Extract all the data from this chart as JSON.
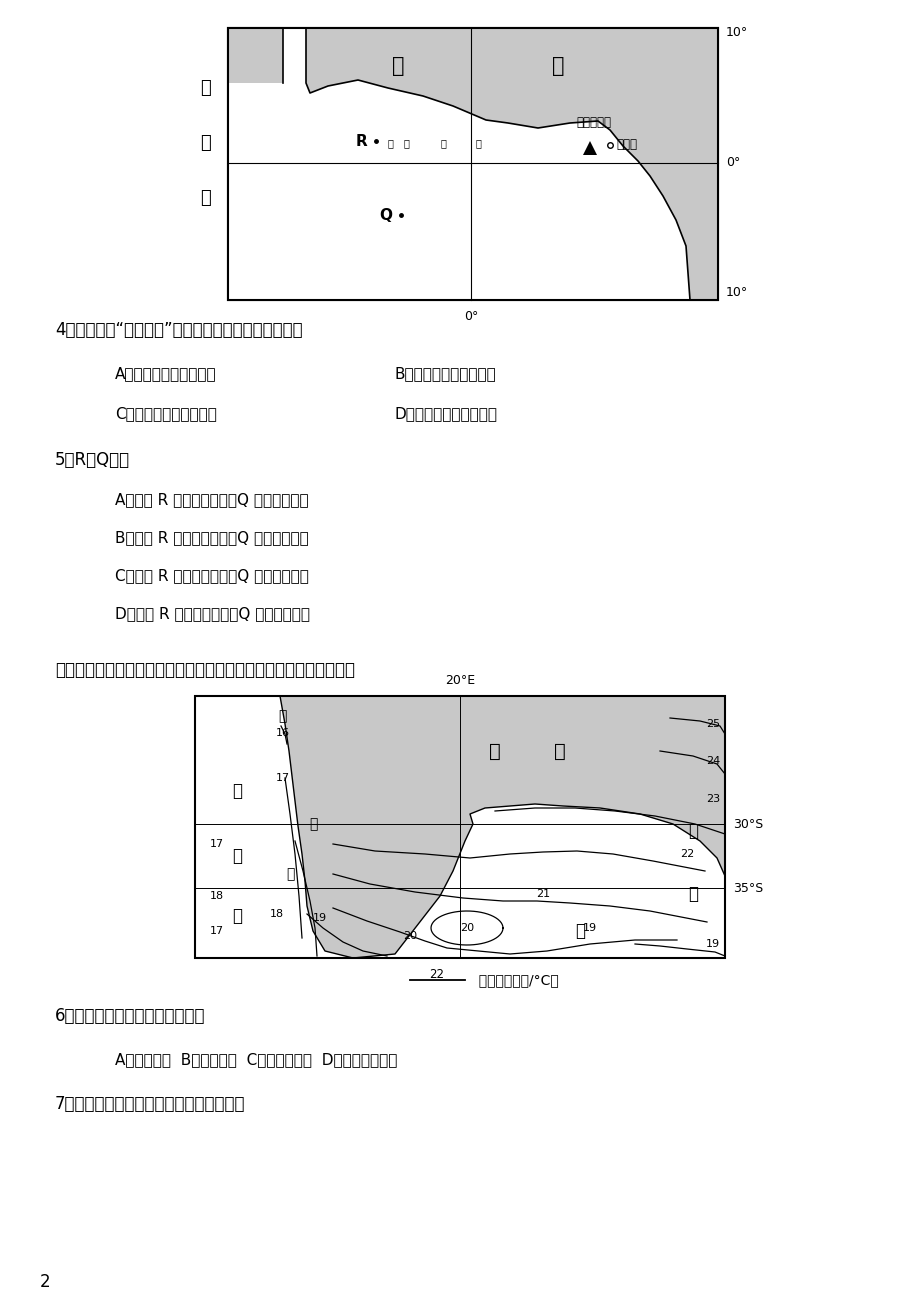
{
  "bg_color": "#ffffff",
  "page_number": "2",
  "intro_text": "下图示意非洲南部周边海域冬季表层水温分布。据此完成下面小题。",
  "question4": "4．布埃亚有“非洲雨极”之称，与其成因没有关联的是",
  "q4a": "A．山地迎风坡多地形雨",
  "q4b": "B．受西非赤道低压影响",
  "q4c": "C．西南季风与海岸垂直",
  "q4d": "D．北赤道暖流增温增湿",
  "question5": "5．R、Q两地",
  "q5a": "A．一月 R 地盛行西南风，Q 地盛行东南风",
  "q5b": "B．一月 R 地盛行东北风，Q 地盛行西北风",
  "q5c": "C．七月 R 地盛行东北风，Q 地盛行东南风",
  "q5d": "D．七月 R 地盛行两南风，Q 地盛行西南风",
  "question6": "6．造成甲地等温线弯曲的洋流是",
  "q6opts": "A．南极环流  B．西风漂流  C．本格拉寒流  D．厕加勒斯暖流",
  "question7": "7．而丙地比乙地水温低的主要影响因素是"
}
